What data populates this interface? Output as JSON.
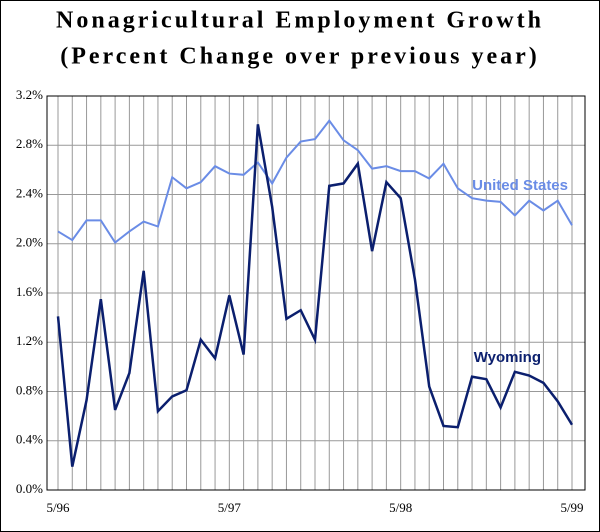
{
  "chart_data": {
    "type": "line",
    "title": "Nonagricultural Employment Growth",
    "subtitle": "(Percent Change over previous year)",
    "categories": [
      "5/96",
      null,
      null,
      null,
      null,
      null,
      null,
      null,
      null,
      null,
      null,
      null,
      "5/97",
      null,
      null,
      null,
      null,
      null,
      null,
      null,
      null,
      null,
      null,
      null,
      "5/98",
      null,
      null,
      null,
      null,
      null,
      null,
      null,
      null,
      null,
      null,
      null,
      "5/99"
    ],
    "series": [
      {
        "name": "United States",
        "color": "#6a8ce6",
        "values": [
          2.1,
          2.03,
          2.19,
          2.19,
          2.01,
          2.1,
          2.18,
          2.14,
          2.54,
          2.45,
          2.5,
          2.63,
          2.57,
          2.56,
          2.66,
          2.49,
          2.7,
          2.83,
          2.85,
          3.0,
          2.84,
          2.76,
          2.61,
          2.63,
          2.59,
          2.59,
          2.53,
          2.65,
          2.45,
          2.37,
          2.35,
          2.34,
          2.23,
          2.35,
          2.27,
          2.35,
          2.15
        ]
      },
      {
        "name": "Wyoming",
        "color": "#0b1f6e",
        "values": [
          1.41,
          0.19,
          0.73,
          1.55,
          0.65,
          0.95,
          1.78,
          0.64,
          0.76,
          0.81,
          1.22,
          1.07,
          1.58,
          1.1,
          2.97,
          2.3,
          1.39,
          1.46,
          1.22,
          2.47,
          2.49,
          2.65,
          1.94,
          2.5,
          2.37,
          1.71,
          0.84,
          0.52,
          0.51,
          0.92,
          0.9,
          0.67,
          0.96,
          0.93,
          0.87,
          0.72,
          0.53
        ]
      }
    ],
    "ylim": [
      0,
      3.2
    ],
    "yticks": [
      {
        "value": 0,
        "label": "0.0%"
      },
      {
        "value": 0.4,
        "label": "0.4%"
      },
      {
        "value": 0.8,
        "label": "0.8%"
      },
      {
        "value": 1.2,
        "label": "1.2%"
      },
      {
        "value": 1.6,
        "label": "1.6%"
      },
      {
        "value": 2.0,
        "label": "2.0%"
      },
      {
        "value": 2.4,
        "label": "2.4%"
      },
      {
        "value": 2.8,
        "label": "2.8%"
      },
      {
        "value": 3.2,
        "label": "3.2%"
      }
    ],
    "grid": true
  }
}
